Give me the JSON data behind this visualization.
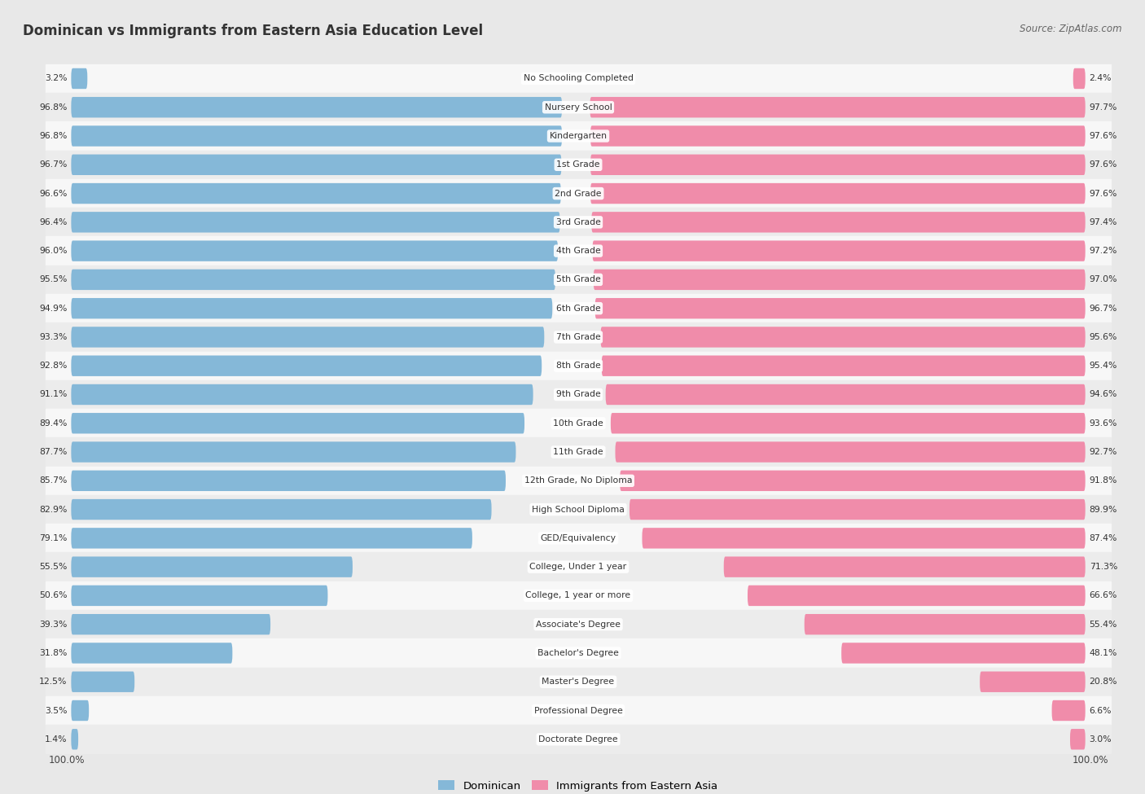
{
  "title": "Dominican vs Immigrants from Eastern Asia Education Level",
  "source": "Source: ZipAtlas.com",
  "categories": [
    "No Schooling Completed",
    "Nursery School",
    "Kindergarten",
    "1st Grade",
    "2nd Grade",
    "3rd Grade",
    "4th Grade",
    "5th Grade",
    "6th Grade",
    "7th Grade",
    "8th Grade",
    "9th Grade",
    "10th Grade",
    "11th Grade",
    "12th Grade, No Diploma",
    "High School Diploma",
    "GED/Equivalency",
    "College, Under 1 year",
    "College, 1 year or more",
    "Associate's Degree",
    "Bachelor's Degree",
    "Master's Degree",
    "Professional Degree",
    "Doctorate Degree"
  ],
  "dominican": [
    3.2,
    96.8,
    96.8,
    96.7,
    96.6,
    96.4,
    96.0,
    95.5,
    94.9,
    93.3,
    92.8,
    91.1,
    89.4,
    87.7,
    85.7,
    82.9,
    79.1,
    55.5,
    50.6,
    39.3,
    31.8,
    12.5,
    3.5,
    1.4
  ],
  "eastern_asia": [
    2.4,
    97.7,
    97.6,
    97.6,
    97.6,
    97.4,
    97.2,
    97.0,
    96.7,
    95.6,
    95.4,
    94.6,
    93.6,
    92.7,
    91.8,
    89.9,
    87.4,
    71.3,
    66.6,
    55.4,
    48.1,
    20.8,
    6.6,
    3.0
  ],
  "dominican_color": "#85b8d8",
  "eastern_asia_color": "#f08caa",
  "row_color_even": "#f7f7f7",
  "row_color_odd": "#ececec",
  "background_color": "#e8e8e8",
  "label_left": "Dominican",
  "label_right": "Immigrants from Eastern Asia"
}
